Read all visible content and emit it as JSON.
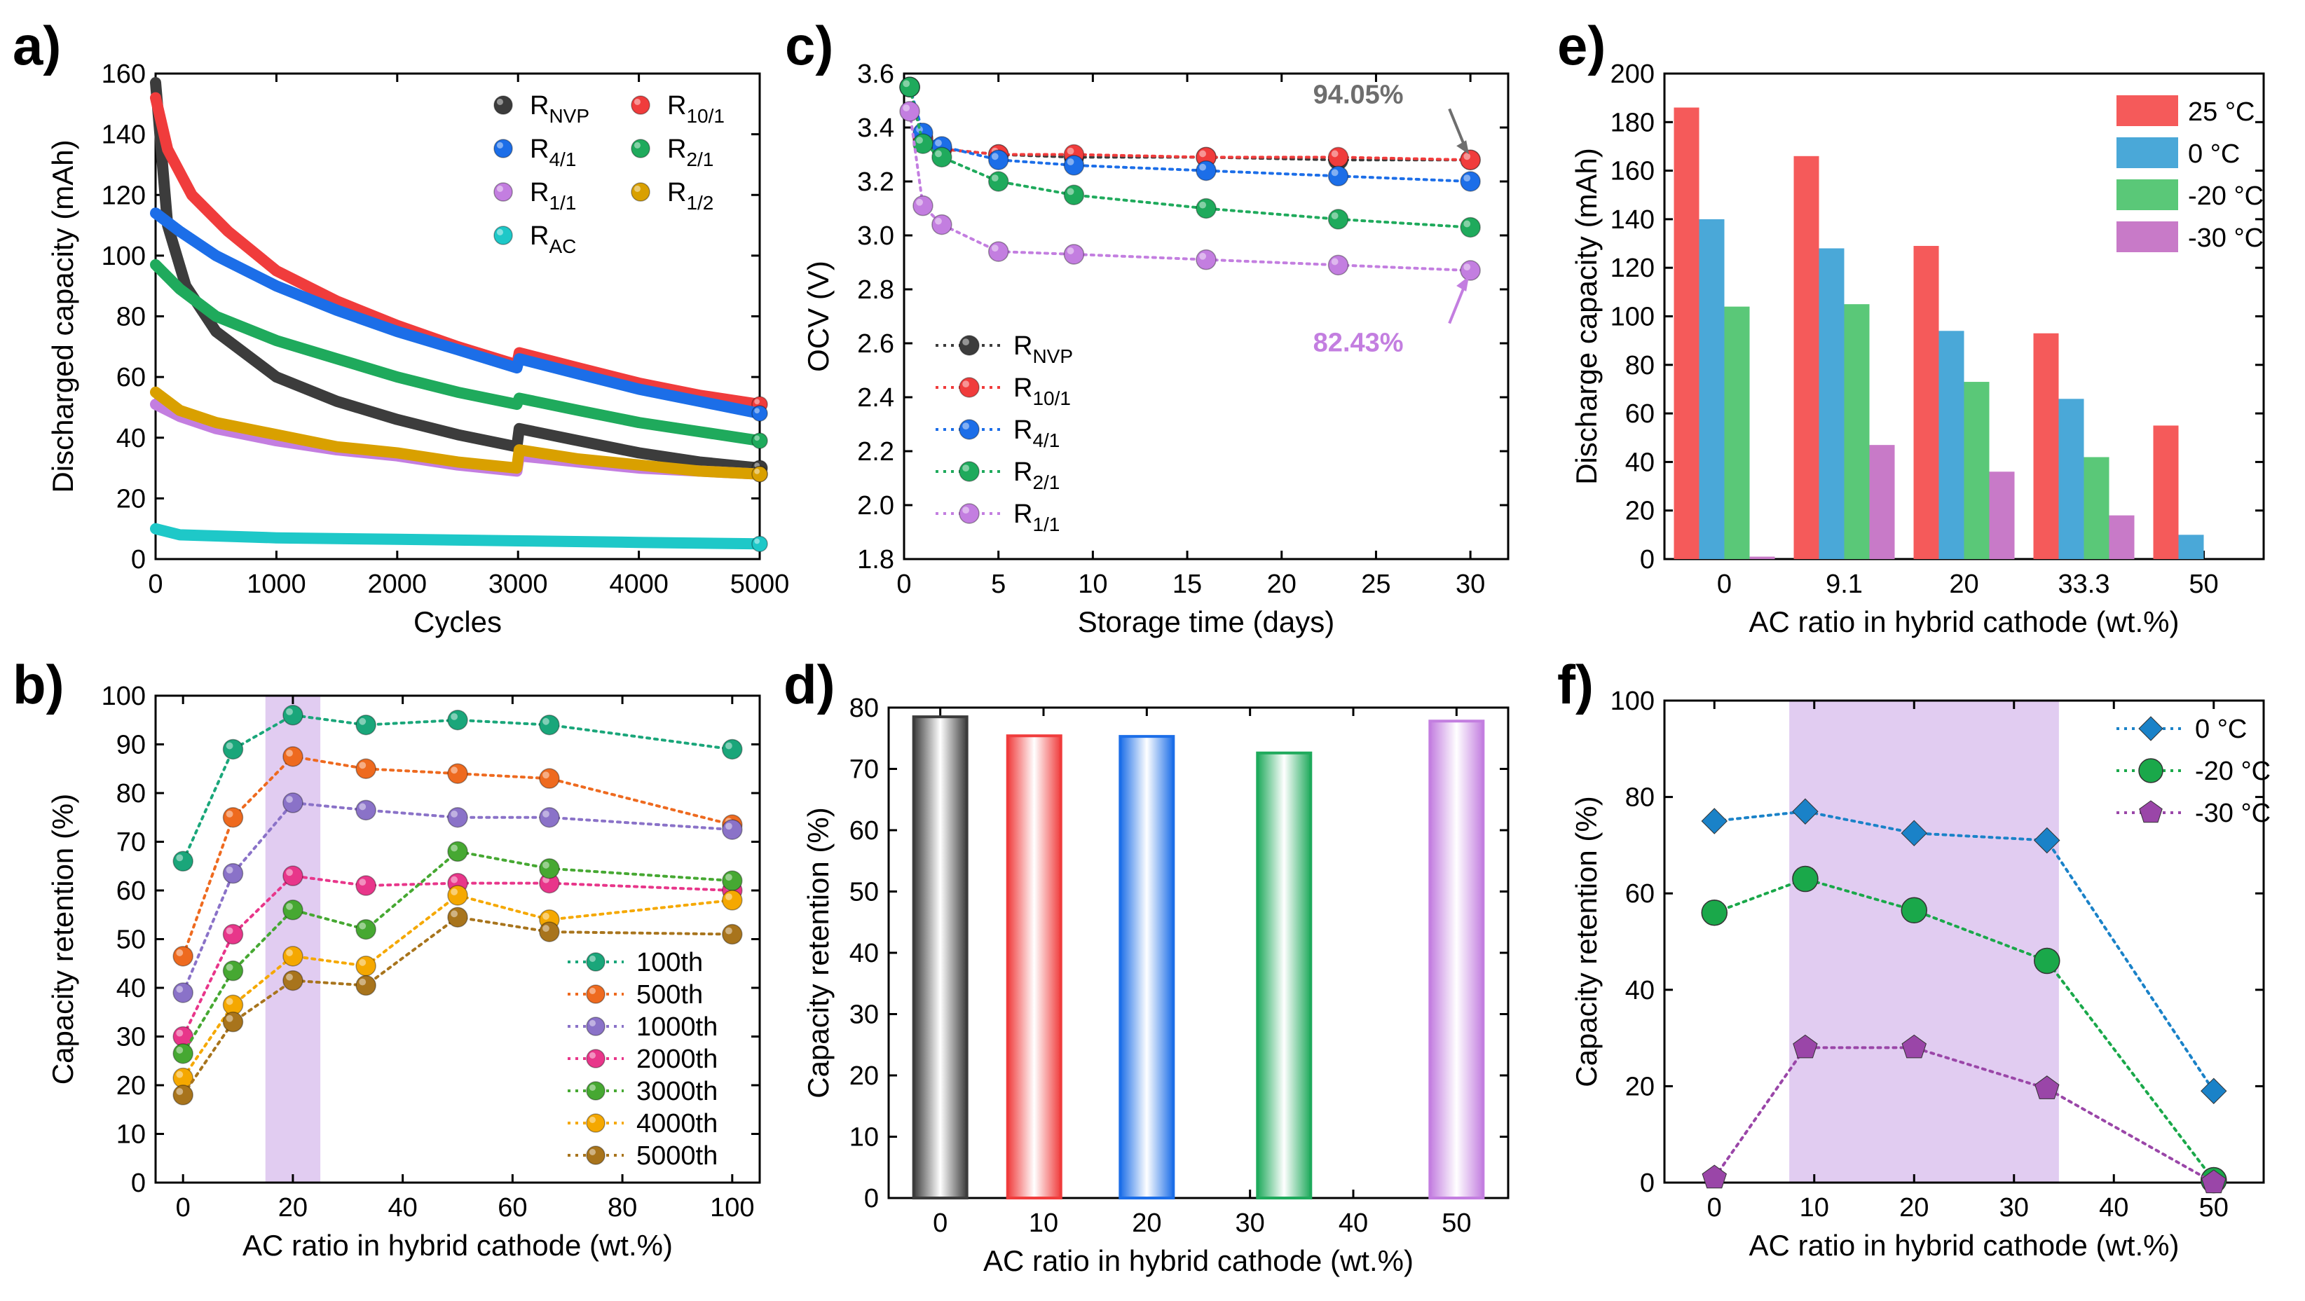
{
  "figure": {
    "panels": [
      "a)",
      "b)",
      "c)",
      "d)",
      "e)",
      "f)"
    ]
  },
  "chart_data": [
    {
      "id": "a",
      "type": "scatter",
      "letter": "a)",
      "xlabel": "Cycles",
      "ylabel": "Discharged capacity (mAh)",
      "xlim": [
        0,
        5000
      ],
      "ylim": [
        0,
        160
      ],
      "xticks": [
        0,
        1000,
        2000,
        3000,
        4000,
        5000
      ],
      "yticks": [
        0,
        20,
        40,
        60,
        80,
        100,
        120,
        140,
        160
      ],
      "series": [
        {
          "name": "RNVP",
          "base": "R",
          "sub": "NVP",
          "color": "#3c3c3c",
          "x": [
            0,
            100,
            250,
            500,
            1000,
            1500,
            2000,
            2500,
            2990,
            3010,
            3500,
            4000,
            4500,
            5000
          ],
          "y": [
            157,
            110,
            90,
            75,
            60,
            52,
            46,
            41,
            37,
            43,
            39,
            35,
            32,
            30
          ]
        },
        {
          "name": "R10/1",
          "base": "R",
          "sub": "10/1",
          "color": "#f03c3c",
          "x": [
            0,
            100,
            300,
            600,
            1000,
            1500,
            2000,
            2500,
            2990,
            3010,
            3500,
            4000,
            4500,
            5000
          ],
          "y": [
            152,
            135,
            120,
            108,
            95,
            85,
            77,
            70,
            64,
            68,
            63,
            58,
            54,
            51
          ]
        },
        {
          "name": "R4/1",
          "base": "R",
          "sub": "4/1",
          "color": "#1c6ee8",
          "x": [
            0,
            200,
            500,
            1000,
            1500,
            2000,
            2500,
            2990,
            3010,
            3500,
            4000,
            4500,
            5000
          ],
          "y": [
            114,
            108,
            100,
            90,
            82,
            75,
            69,
            63,
            66,
            61,
            56,
            52,
            48
          ]
        },
        {
          "name": "R2/1",
          "base": "R",
          "sub": "2/1",
          "color": "#1faa5c",
          "x": [
            0,
            200,
            500,
            1000,
            1500,
            2000,
            2500,
            2990,
            3010,
            3500,
            4000,
            4500,
            5000
          ],
          "y": [
            97,
            89,
            80,
            72,
            66,
            60,
            55,
            51,
            53,
            49,
            45,
            42,
            39
          ]
        },
        {
          "name": "R1/1",
          "base": "R",
          "sub": "1/1",
          "color": "#c37ee0",
          "x": [
            0,
            200,
            500,
            1000,
            1500,
            2000,
            2500,
            2990,
            3010,
            3500,
            4000,
            4500,
            5000
          ],
          "y": [
            51,
            47,
            43,
            39,
            36,
            34,
            31,
            29,
            34,
            32,
            30,
            29,
            28
          ]
        },
        {
          "name": "R1/2",
          "base": "R",
          "sub": "1/2",
          "color": "#d9a000",
          "x": [
            0,
            200,
            500,
            1000,
            1500,
            2000,
            2500,
            2990,
            3010,
            3500,
            4000,
            4500,
            5000
          ],
          "y": [
            55,
            49,
            45,
            41,
            37,
            35,
            32,
            30,
            36,
            33,
            31,
            29,
            28
          ]
        },
        {
          "name": "RAC",
          "base": "R",
          "sub": "AC",
          "color": "#1ec8c8",
          "x": [
            0,
            200,
            1000,
            2000,
            3000,
            4000,
            5000
          ],
          "y": [
            10,
            8,
            7,
            6.5,
            6,
            5.5,
            5
          ]
        }
      ]
    },
    {
      "id": "b",
      "type": "line",
      "letter": "b)",
      "xlabel": "AC ratio in hybrid cathode (wt.%)",
      "ylabel": "Capacity retention (%)",
      "xlim": [
        -5,
        105
      ],
      "ylim": [
        0,
        100
      ],
      "xticks": [
        0,
        20,
        40,
        60,
        80,
        100
      ],
      "yticks": [
        0,
        10,
        20,
        30,
        40,
        50,
        60,
        70,
        80,
        90,
        100
      ],
      "shade": [
        15,
        25
      ],
      "x": [
        0,
        9.1,
        20,
        33.3,
        50,
        66.7,
        100
      ],
      "series": [
        {
          "name": "100th",
          "color": "#1aa67a",
          "values": [
            66,
            89,
            96,
            94,
            95,
            94,
            89
          ]
        },
        {
          "name": "500th",
          "color": "#ee6a1f",
          "values": [
            46.5,
            75,
            87.5,
            85,
            84,
            83,
            73.5
          ]
        },
        {
          "name": "1000th",
          "color": "#8a72c8",
          "values": [
            39,
            63.5,
            78,
            76.5,
            75,
            75,
            72.5
          ]
        },
        {
          "name": "2000th",
          "color": "#e8368a",
          "values": [
            30,
            51,
            63,
            61,
            61.5,
            61.5,
            60
          ]
        },
        {
          "name": "3000th",
          "color": "#46a832",
          "values": [
            26.5,
            43.5,
            56,
            52,
            68,
            64.5,
            62
          ]
        },
        {
          "name": "4000th",
          "color": "#f5a800",
          "values": [
            21.5,
            36.5,
            46.5,
            44.5,
            59,
            54,
            58
          ]
        },
        {
          "name": "5000th",
          "color": "#a8741c",
          "values": [
            18,
            33,
            41.5,
            40.5,
            54.5,
            51.5,
            51
          ]
        }
      ]
    },
    {
      "id": "c",
      "type": "line",
      "letter": "c)",
      "xlabel": "Storage time (days)",
      "ylabel": "OCV (V)",
      "xlim": [
        0,
        32
      ],
      "ylim": [
        1.8,
        3.6
      ],
      "xticks": [
        0,
        5,
        10,
        15,
        20,
        25,
        30
      ],
      "yticks": [
        1.8,
        2.0,
        2.2,
        2.4,
        2.6,
        2.8,
        3.0,
        3.2,
        3.4,
        3.6
      ],
      "x": [
        0.3,
        1,
        2,
        5,
        9,
        16,
        23,
        30
      ],
      "series": [
        {
          "name": "RNVP",
          "base": "R",
          "sub": "NVP",
          "color": "#3c3c3c",
          "values": [
            3.55,
            3.36,
            3.32,
            3.3,
            3.29,
            3.29,
            3.28,
            3.28
          ]
        },
        {
          "name": "R10/1",
          "base": "R",
          "sub": "10/1",
          "color": "#f03c3c",
          "values": [
            3.55,
            3.36,
            3.32,
            3.3,
            3.3,
            3.29,
            3.29,
            3.28
          ]
        },
        {
          "name": "R4/1",
          "base": "R",
          "sub": "4/1",
          "color": "#1c6ee8",
          "values": [
            3.55,
            3.38,
            3.33,
            3.28,
            3.26,
            3.24,
            3.22,
            3.2
          ]
        },
        {
          "name": "R2/1",
          "base": "R",
          "sub": "2/1",
          "color": "#1faa5c",
          "values": [
            3.55,
            3.34,
            3.29,
            3.2,
            3.15,
            3.1,
            3.06,
            3.03
          ]
        },
        {
          "name": "R1/1",
          "base": "R",
          "sub": "1/1",
          "color": "#c37ee0",
          "values": [
            3.46,
            3.11,
            3.04,
            2.94,
            2.93,
            2.91,
            2.89,
            2.87
          ]
        }
      ],
      "annotations": [
        {
          "text": "94.05%",
          "color": "#6e6e6e",
          "x": 30,
          "y": 3.28,
          "at": "upper"
        },
        {
          "text": "82.43%",
          "color": "#c37ee0",
          "x": 30,
          "y": 2.87,
          "at": "lower"
        }
      ]
    },
    {
      "id": "d",
      "type": "bar",
      "letter": "d)",
      "xlabel": "AC ratio in hybrid cathode (wt.%)",
      "ylabel": "Capacity retention (%)",
      "xlim": [
        -5,
        55
      ],
      "ylim": [
        0,
        80
      ],
      "xticks": [
        0,
        10,
        20,
        30,
        40,
        50
      ],
      "yticks": [
        0,
        10,
        20,
        30,
        40,
        50,
        60,
        70,
        80
      ],
      "bars": [
        {
          "x": 0,
          "value": 78.5,
          "color": "#3c3c3c"
        },
        {
          "x": 9.1,
          "value": 75.4,
          "color": "#f03c3c"
        },
        {
          "x": 20,
          "value": 75.3,
          "color": "#1c6ee8"
        },
        {
          "x": 33.3,
          "value": 72.6,
          "color": "#1faa5c"
        },
        {
          "x": 50,
          "value": 77.8,
          "color": "#c37ee0"
        }
      ]
    },
    {
      "id": "e",
      "type": "bar",
      "letter": "e)",
      "xlabel": "AC ratio in hybrid cathode (wt.%)",
      "ylabel": "Discharge capacity (mAh)",
      "ylim": [
        0,
        200
      ],
      "categories": [
        "0",
        "9.1",
        "20",
        "33.3",
        "50"
      ],
      "yticks": [
        0,
        20,
        40,
        60,
        80,
        100,
        120,
        140,
        160,
        180,
        200
      ],
      "series": [
        {
          "name": "25 °C",
          "color": "#f55a5a",
          "values": [
            186,
            166,
            129,
            93,
            55
          ]
        },
        {
          "name": "0 °C",
          "color": "#4aa8d8",
          "values": [
            140,
            128,
            94,
            66,
            10
          ]
        },
        {
          "name": "-20 °C",
          "color": "#5ac878",
          "values": [
            104,
            105,
            73,
            42,
            0
          ]
        },
        {
          "name": "-30 °C",
          "color": "#c87ac8",
          "values": [
            1,
            47,
            36,
            18,
            0
          ]
        }
      ]
    },
    {
      "id": "f",
      "type": "line",
      "letter": "f)",
      "xlabel": "AC ratio in hybrid cathode (wt.%)",
      "ylabel": "Capacity retention (%)",
      "xlim": [
        -5,
        55
      ],
      "ylim": [
        0,
        100
      ],
      "xticks": [
        0,
        10,
        20,
        30,
        40,
        50
      ],
      "yticks": [
        0,
        20,
        40,
        60,
        80,
        100
      ],
      "shade": [
        7.5,
        34.5
      ],
      "x": [
        0,
        9.1,
        20,
        33.3,
        50
      ],
      "series": [
        {
          "name": "0 °C",
          "color": "#1a82c8",
          "marker": "diamond",
          "values": [
            75,
            77,
            72.5,
            71,
            19
          ]
        },
        {
          "name": "-20 °C",
          "color": "#1aa84a",
          "marker": "circle",
          "values": [
            56,
            63,
            56.5,
            46,
            0.5
          ]
        },
        {
          "name": "-30 °C",
          "color": "#9a46a8",
          "marker": "pentagon",
          "values": [
            1,
            28,
            28,
            19.5,
            0
          ]
        }
      ]
    }
  ]
}
